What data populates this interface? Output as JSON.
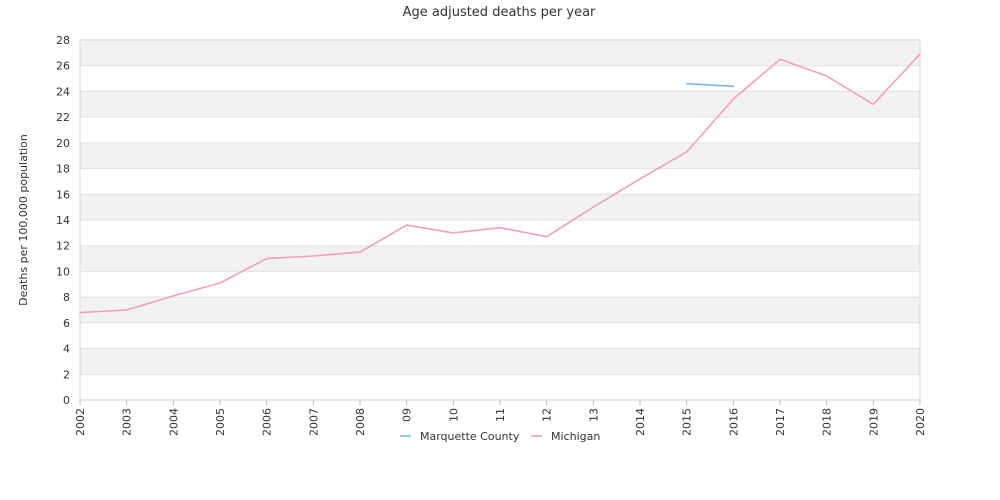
{
  "chart_data": {
    "type": "line",
    "title": "Age adjusted deaths per year",
    "xlabel": "",
    "ylabel": "Deaths per 100,000 population",
    "ylim": [
      0,
      28
    ],
    "ytick_step": 2,
    "grid": true,
    "legend_position": "bottom",
    "x": [
      "2002",
      "2003",
      "2004",
      "2005",
      "2006",
      "2007",
      "2008",
      "09",
      "10",
      "11",
      "12",
      "13",
      "2014",
      "2015",
      "2016",
      "2017",
      "2018",
      "2019",
      "2020"
    ],
    "series": [
      {
        "name": "Marquette County",
        "color": "#7cb5ec",
        "values": [
          null,
          null,
          null,
          null,
          null,
          null,
          null,
          null,
          null,
          null,
          null,
          null,
          null,
          24.6,
          24.4,
          null,
          null,
          null,
          null
        ]
      },
      {
        "name": "Michigan",
        "color": "#f19ec2",
        "values": [
          6.8,
          7.0,
          8.1,
          9.1,
          11.0,
          11.2,
          11.5,
          13.6,
          13.0,
          13.4,
          12.7,
          15.0,
          17.2,
          19.3,
          23.4,
          26.5,
          25.2,
          23.0,
          26.9
        ]
      }
    ]
  }
}
